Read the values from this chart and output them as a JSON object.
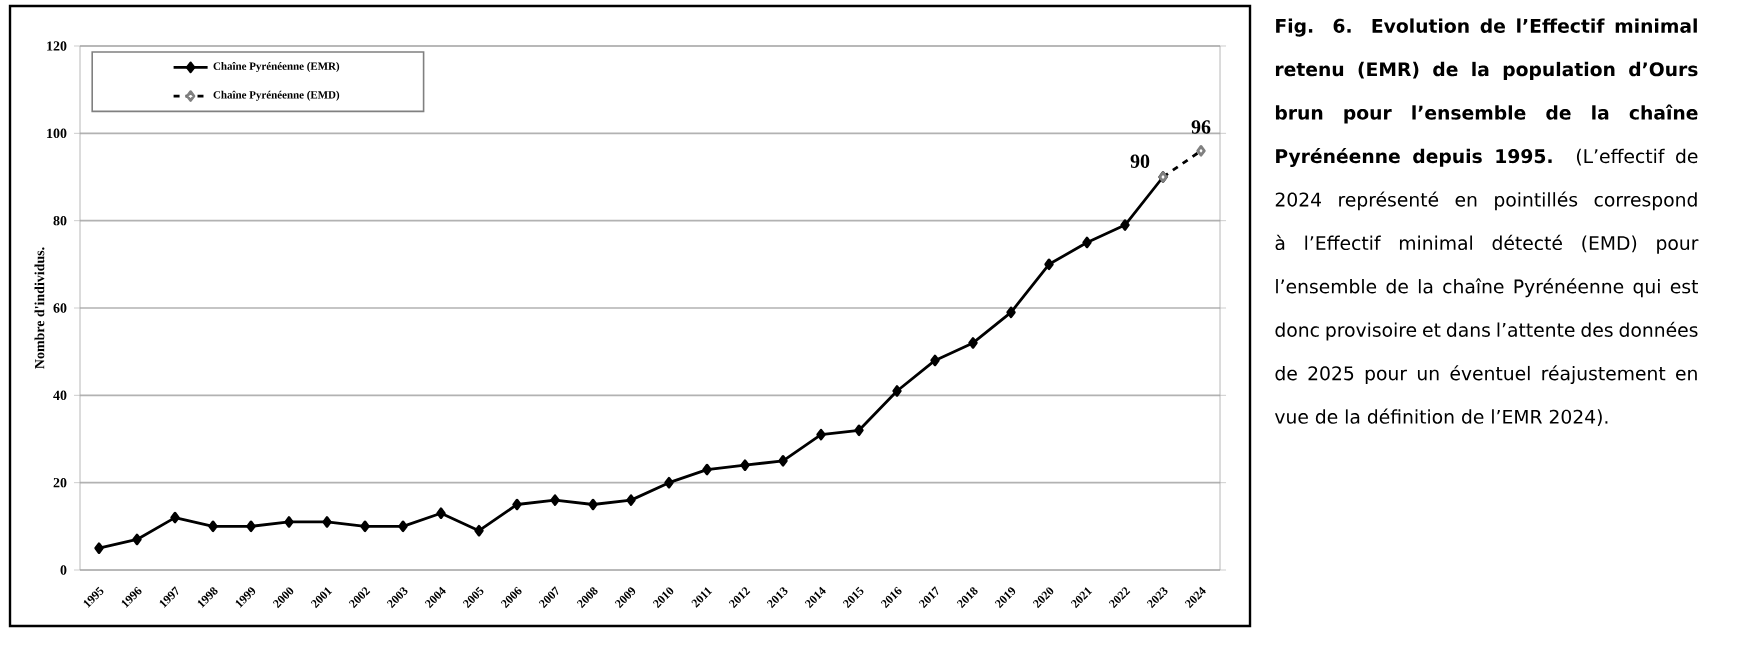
{
  "chart_data": {
    "type": "line",
    "title": "**Fig. 6. Evolution de l’Effectif minimal retenu (EMR) de la population d’Ours brun pour l’ensemble de la chaîne Pyrénéenne depuis 1995.**",
    "subtitle": "(L’effectif de 2024 représenté en pointillés correspond à l’Effectif minimal détecté (EMD) pour l’ensemble de la chaîne Pyrénéenne qui est donc provisoire et dans l’attente des données de 2025 pour un éventuel réajustement en vue de la définition de l’EMR 2024).",
    "ylabel": "Nombre d'individus.",
    "categories": [
      "1995",
      "1996",
      "1997",
      "1998",
      "1999",
      "2000",
      "2001",
      "2002",
      "2003",
      "2004",
      "2005",
      "2006",
      "2007",
      "2008",
      "2009",
      "2010",
      "2011",
      "2012",
      "2013",
      "2014",
      "2015",
      "2016",
      "2017",
      "2018",
      "2019",
      "2020",
      "2021",
      "2022",
      "2023",
      "2024"
    ],
    "series": [
      {
        "name": "Chaîne Pyrénéenne (EMR)",
        "color": "#000000",
        "line_style": "solid",
        "marker": "diamond",
        "values": [
          5,
          7,
          12,
          10,
          10,
          11,
          11,
          10,
          10,
          13,
          9,
          15,
          16,
          15,
          16,
          20,
          23,
          24,
          25,
          31,
          32,
          41,
          48,
          52,
          59,
          70,
          75,
          79,
          90,
          null
        ],
        "value_labels": [
          null,
          null,
          null,
          null,
          null,
          null,
          null,
          null,
          null,
          null,
          null,
          null,
          null,
          null,
          null,
          null,
          null,
          null,
          null,
          null,
          null,
          null,
          null,
          null,
          null,
          null,
          null,
          null,
          "90",
          null
        ]
      },
      {
        "name": "Chaîne Pyrénéenne (EMD)",
        "color": "#000000",
        "line_style": "dashed",
        "marker": "diamond",
        "values": [
          null,
          null,
          null,
          null,
          null,
          null,
          null,
          null,
          null,
          null,
          null,
          null,
          null,
          null,
          null,
          null,
          null,
          null,
          null,
          null,
          null,
          null,
          null,
          null,
          null,
          null,
          null,
          null,
          90,
          96
        ],
        "value_labels": [
          null,
          null,
          null,
          null,
          null,
          null,
          null,
          null,
          null,
          null,
          null,
          null,
          null,
          null,
          null,
          null,
          null,
          null,
          null,
          null,
          null,
          null,
          null,
          null,
          null,
          null,
          null,
          null,
          null,
          "96"
        ]
      }
    ],
    "ylim": [
      0,
      120
    ],
    "yticks": [
      0,
      20,
      40,
      60,
      80,
      100,
      120
    ],
    "grid": "y",
    "legend": "top left"
  }
}
